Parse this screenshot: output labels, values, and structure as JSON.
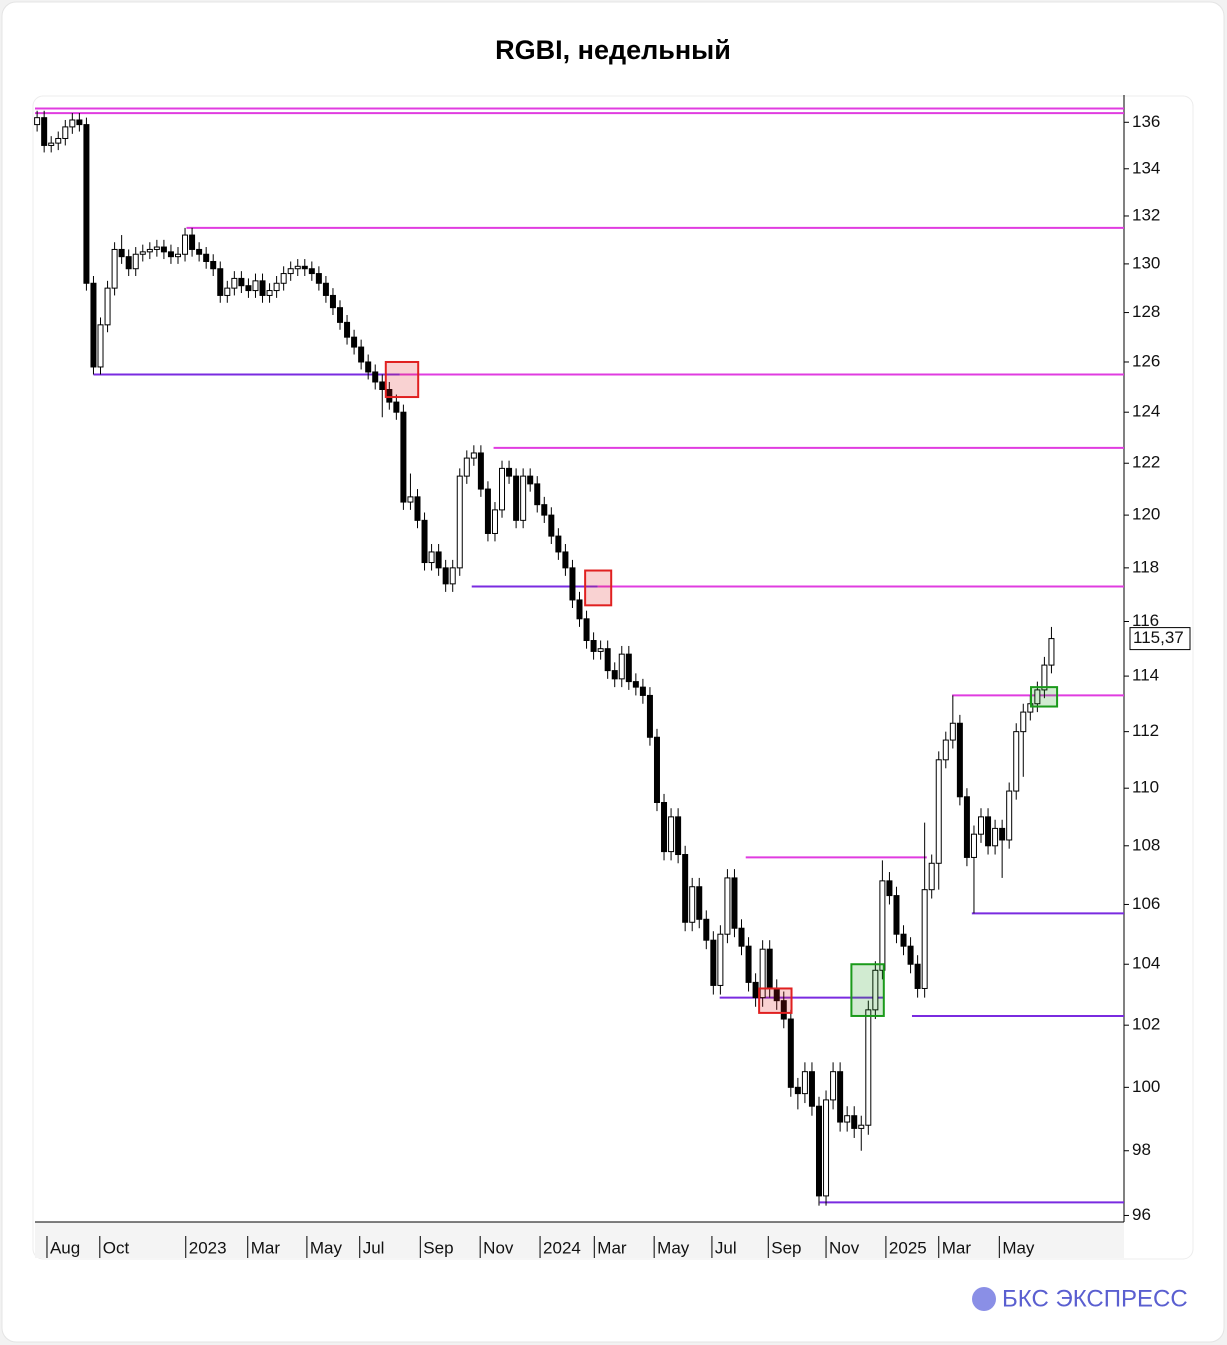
{
  "chart_data": {
    "type": "candlestick",
    "title": "RGBI, недельный",
    "brand": "БКС ЭКСПРЕСС",
    "log_scale": true,
    "open": [
      135.9,
      136.2,
      135.0,
      135.1,
      135.3,
      135.8,
      136.1,
      135.9,
      129.2,
      125.8,
      127.5,
      129.0,
      130.6,
      130.3,
      129.8,
      130.4,
      130.5,
      130.6,
      130.7,
      130.5,
      130.3,
      130.4,
      131.2,
      130.6,
      130.4,
      130.1,
      129.8,
      128.7,
      129.0,
      129.4,
      129.1,
      128.9,
      129.3,
      128.7,
      128.9,
      129.2,
      129.6,
      129.8,
      129.9,
      129.8,
      129.6,
      129.2,
      128.7,
      128.2,
      127.6,
      127.0,
      126.6,
      126.0,
      125.6,
      125.2,
      124.9,
      124.4,
      124.0,
      120.5,
      120.7,
      119.8,
      118.2,
      118.6,
      118.0,
      117.4,
      118.0,
      121.5,
      122.2,
      122.4,
      121.0,
      119.3,
      120.2,
      121.8,
      121.5,
      119.8,
      121.5,
      121.2,
      120.4,
      120.0,
      119.2,
      118.6,
      118.0,
      116.8,
      116.1,
      115.3,
      114.9,
      115.0,
      114.2,
      113.9,
      114.8,
      113.8,
      113.6,
      113.3,
      111.8,
      109.5,
      107.8,
      109.0,
      107.7,
      105.4,
      106.6,
      105.5,
      104.8,
      103.3,
      105.0,
      106.9,
      105.2,
      104.6,
      103.4,
      102.9,
      104.5,
      103.2,
      102.8,
      102.2,
      100.0,
      99.8,
      100.5,
      99.4,
      96.6,
      99.6,
      100.5,
      98.9,
      99.1,
      98.7,
      98.8,
      102.5,
      103.8,
      106.8,
      106.3,
      105.0,
      104.6,
      104.0,
      103.2,
      106.5,
      107.4,
      111.0,
      111.7,
      112.3,
      109.7,
      107.6,
      108.4,
      109.0,
      108.0,
      108.6,
      108.2,
      109.9,
      112.0,
      112.7,
      113.0,
      113.5,
      114.4
    ],
    "high": [
      136.5,
      136.5,
      135.4,
      135.6,
      136.1,
      136.4,
      136.4,
      136.2,
      129.5,
      127.8,
      129.3,
      130.9,
      131.2,
      130.6,
      130.7,
      130.8,
      130.9,
      131.0,
      131.0,
      130.8,
      130.7,
      131.5,
      131.5,
      130.9,
      130.7,
      130.4,
      130.1,
      129.3,
      129.7,
      129.7,
      129.4,
      129.6,
      129.6,
      129.2,
      129.5,
      129.9,
      130.1,
      130.2,
      130.2,
      130.1,
      129.9,
      129.5,
      129.0,
      128.5,
      127.9,
      127.3,
      126.9,
      126.3,
      125.9,
      125.5,
      125.2,
      124.7,
      124.3,
      121.6,
      121.0,
      120.1,
      118.9,
      118.9,
      118.3,
      118.3,
      121.8,
      122.5,
      122.7,
      122.7,
      121.3,
      120.5,
      122.1,
      122.1,
      121.8,
      121.8,
      121.8,
      121.5,
      120.7,
      120.3,
      119.5,
      118.9,
      118.3,
      117.1,
      116.4,
      115.6,
      115.3,
      115.3,
      114.5,
      115.1,
      115.1,
      114.1,
      113.9,
      113.6,
      112.1,
      109.8,
      109.3,
      109.3,
      108.0,
      106.9,
      106.9,
      105.8,
      105.1,
      105.3,
      107.2,
      107.2,
      105.5,
      104.9,
      103.7,
      104.8,
      104.8,
      103.5,
      103.1,
      102.5,
      100.3,
      100.8,
      100.8,
      99.7,
      99.9,
      100.8,
      100.8,
      99.4,
      99.4,
      99.1,
      102.8,
      104.1,
      107.5,
      107.1,
      106.6,
      105.3,
      104.9,
      104.3,
      108.8,
      107.7,
      111.3,
      112.0,
      113.3,
      112.6,
      110.0,
      108.7,
      109.3,
      109.3,
      108.9,
      108.9,
      110.2,
      112.3,
      113.0,
      113.3,
      113.8,
      114.7,
      115.8
    ],
    "low": [
      135.6,
      134.7,
      134.7,
      134.8,
      135.0,
      135.5,
      135.6,
      128.9,
      125.5,
      125.5,
      127.2,
      128.7,
      130.0,
      129.5,
      129.5,
      130.1,
      130.2,
      130.3,
      130.2,
      130.0,
      130.0,
      130.1,
      130.3,
      130.1,
      129.8,
      129.5,
      128.4,
      128.4,
      128.7,
      128.8,
      128.6,
      128.6,
      128.4,
      128.4,
      128.6,
      128.9,
      129.3,
      129.5,
      129.5,
      129.3,
      128.9,
      128.4,
      127.9,
      127.3,
      126.7,
      126.3,
      125.7,
      125.3,
      124.9,
      123.8,
      124.1,
      123.7,
      120.2,
      120.2,
      119.5,
      117.9,
      117.9,
      117.7,
      117.1,
      117.1,
      117.7,
      121.2,
      121.9,
      120.7,
      119.0,
      119.0,
      119.9,
      121.2,
      119.5,
      119.5,
      120.9,
      120.1,
      119.7,
      118.9,
      118.3,
      117.7,
      116.5,
      115.8,
      115.0,
      114.6,
      114.6,
      113.9,
      113.6,
      113.6,
      113.5,
      113.3,
      113.0,
      111.5,
      109.2,
      107.5,
      107.5,
      107.4,
      105.1,
      105.1,
      105.2,
      104.5,
      103.0,
      103.0,
      104.7,
      104.9,
      104.3,
      103.1,
      102.6,
      102.6,
      102.9,
      102.5,
      101.9,
      99.7,
      99.3,
      99.5,
      99.1,
      96.3,
      96.3,
      99.3,
      98.6,
      98.6,
      98.4,
      98.0,
      98.5,
      102.2,
      103.5,
      106.0,
      104.7,
      104.3,
      103.7,
      102.9,
      102.9,
      106.2,
      106.5,
      110.7,
      111.4,
      109.4,
      107.3,
      105.7,
      108.1,
      107.7,
      107.7,
      106.9,
      107.9,
      109.6,
      110.4,
      112.4,
      112.7,
      113.2,
      114.1
    ],
    "close": [
      136.2,
      135.0,
      135.1,
      135.3,
      135.8,
      136.1,
      135.9,
      129.2,
      125.8,
      127.5,
      129.0,
      130.6,
      130.3,
      129.8,
      130.4,
      130.5,
      130.6,
      130.7,
      130.5,
      130.3,
      130.4,
      131.2,
      130.6,
      130.4,
      130.1,
      129.8,
      128.7,
      129.0,
      129.4,
      129.1,
      128.9,
      129.3,
      128.7,
      128.9,
      129.2,
      129.6,
      129.8,
      129.9,
      129.8,
      129.6,
      129.2,
      128.7,
      128.2,
      127.6,
      127.0,
      126.6,
      126.0,
      125.6,
      125.2,
      124.9,
      124.4,
      124.0,
      120.5,
      120.7,
      119.8,
      118.2,
      118.6,
      118.0,
      117.4,
      118.0,
      121.5,
      122.2,
      122.4,
      121.0,
      119.3,
      120.2,
      121.8,
      121.5,
      119.8,
      121.5,
      121.2,
      120.4,
      120.0,
      119.2,
      118.6,
      118.0,
      116.8,
      116.1,
      115.3,
      114.9,
      115.0,
      114.2,
      113.9,
      114.8,
      113.8,
      113.6,
      113.3,
      111.8,
      109.5,
      107.8,
      109.0,
      107.7,
      105.4,
      106.6,
      105.5,
      104.8,
      103.3,
      105.0,
      106.9,
      105.2,
      104.6,
      103.4,
      102.9,
      104.5,
      103.2,
      102.8,
      102.2,
      100.0,
      99.8,
      100.5,
      99.4,
      96.6,
      99.6,
      100.5,
      98.9,
      99.1,
      98.7,
      98.8,
      102.5,
      103.8,
      106.8,
      106.3,
      105.0,
      104.6,
      104.0,
      103.2,
      106.5,
      107.4,
      111.0,
      111.7,
      112.3,
      109.7,
      107.6,
      108.4,
      109.0,
      108.0,
      108.6,
      108.2,
      109.9,
      112.0,
      112.7,
      113.0,
      113.5,
      114.4,
      115.37
    ],
    "last_label": "115,37",
    "xlim": [
      -0.3,
      154.3
    ],
    "xticks": [
      {
        "value": 1.4,
        "label": "Aug"
      },
      {
        "value": 8.9,
        "label": "Oct"
      },
      {
        "value": 21.1,
        "label": "2023"
      },
      {
        "value": 29.9,
        "label": "Mar"
      },
      {
        "value": 38.3,
        "label": "May"
      },
      {
        "value": 45.8,
        "label": "Jul"
      },
      {
        "value": 54.4,
        "label": "Sep"
      },
      {
        "value": 62.9,
        "label": "Nov"
      },
      {
        "value": 71.4,
        "label": "2024"
      },
      {
        "value": 79.1,
        "label": "Mar"
      },
      {
        "value": 87.6,
        "label": "May"
      },
      {
        "value": 95.8,
        "label": "Jul"
      },
      {
        "value": 103.8,
        "label": "Sep"
      },
      {
        "value": 112.0,
        "label": "Nov"
      },
      {
        "value": 120.5,
        "label": "2025"
      },
      {
        "value": 128.0,
        "label": "Mar"
      },
      {
        "value": 136.6,
        "label": "May"
      }
    ],
    "ylim": [
      95.8,
      137.1
    ],
    "yticks": [
      96,
      98,
      100,
      102,
      104,
      106,
      108,
      110,
      112,
      114,
      116,
      118,
      120,
      122,
      124,
      126,
      128,
      130,
      132,
      134,
      136
    ],
    "levels": [
      {
        "y": 136.6,
        "from": -0.3,
        "to": 154.3,
        "color": "#e03ce0"
      },
      {
        "y": 136.4,
        "from": -0.3,
        "to": 154.3,
        "color": "#e03ce0"
      },
      {
        "y": 131.5,
        "from": 21.2,
        "to": 154.3,
        "color": "#e03ce0"
      },
      {
        "y": 125.5,
        "from": 8,
        "to": 51.5,
        "color": "#7a2be0"
      },
      {
        "y": 125.5,
        "from": 51.5,
        "to": 154.3,
        "color": "#e03ce0"
      },
      {
        "y": 122.6,
        "from": 64.8,
        "to": 154.3,
        "color": "#e03ce0"
      },
      {
        "y": 117.3,
        "from": 61.7,
        "to": 79.6,
        "color": "#7a2be0"
      },
      {
        "y": 117.3,
        "from": 79.6,
        "to": 154.3,
        "color": "#e03ce0"
      },
      {
        "y": 113.3,
        "from": 129.9,
        "to": 154.3,
        "color": "#e03ce0"
      },
      {
        "y": 107.6,
        "from": 100.6,
        "to": 126.3,
        "color": "#e03ce0"
      },
      {
        "y": 105.7,
        "from": 132.7,
        "to": 154.3,
        "color": "#7a2be0"
      },
      {
        "y": 102.9,
        "from": 96.9,
        "to": 120.2,
        "color": "#7a2be0"
      },
      {
        "y": 102.3,
        "from": 124.2,
        "to": 154.3,
        "color": "#7a2be0"
      },
      {
        "y": 96.4,
        "from": 111.1,
        "to": 154.3,
        "color": "#7a2be0"
      }
    ],
    "zones": [
      {
        "from": 49.5,
        "to": 54.1,
        "low": 124.6,
        "high": 126.0,
        "color": "#e02020"
      },
      {
        "from": 77.8,
        "to": 81.5,
        "low": 116.6,
        "high": 117.9,
        "color": "#e02020"
      },
      {
        "from": 102.5,
        "to": 107.1,
        "low": 102.4,
        "high": 103.2,
        "color": "#e02020"
      },
      {
        "from": 115.6,
        "to": 120.2,
        "low": 102.3,
        "high": 104.0,
        "color": "#1a9a1a"
      },
      {
        "from": 141.1,
        "to": 144.8,
        "low": 112.9,
        "high": 113.6,
        "color": "#1a9a1a"
      }
    ]
  }
}
